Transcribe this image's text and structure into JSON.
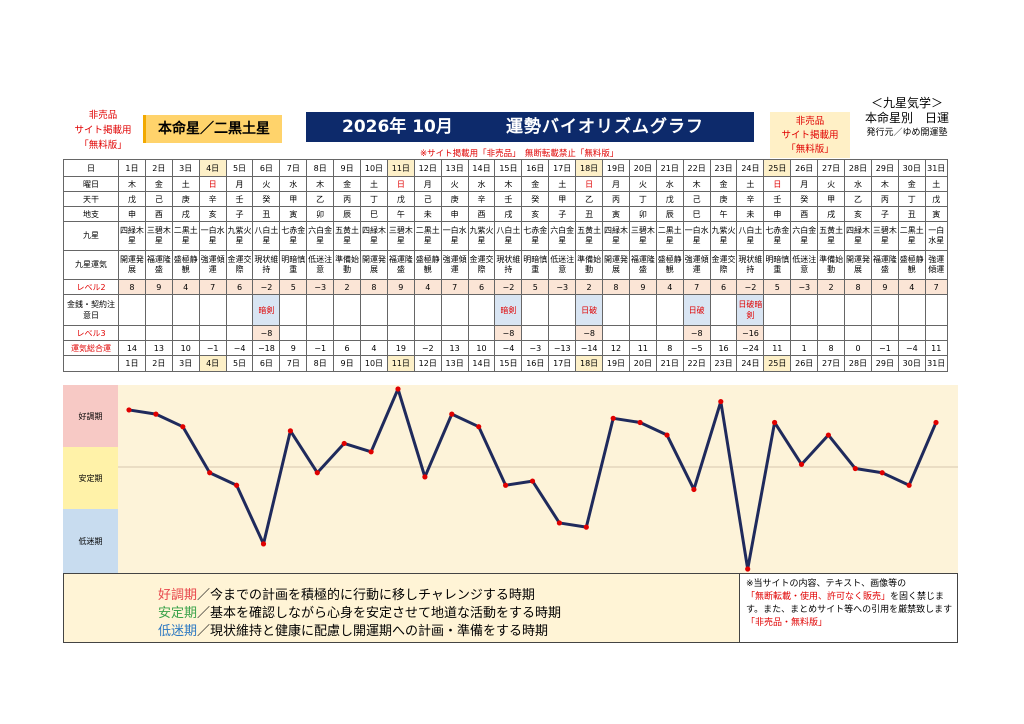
{
  "header": {
    "nonsale_left": [
      "非売品",
      "サイト掲載用",
      "「無料版」"
    ],
    "honmei": "本命星／二黒土星",
    "year_month": "2026年 10月",
    "title": "運勢バイオリズムグラフ",
    "nonsale_right": [
      "非売品",
      "サイト掲載用",
      "「無料版」"
    ],
    "kyusei": "＜九星気学＞",
    "kyusei_sub": "本命星別　日運",
    "publisher": "発行元／ゆめ開運塾",
    "notice": "※サイト掲載用「非売品」　無断転載禁止「無料版」"
  },
  "table": {
    "row_labels": {
      "date": "日",
      "weekday": "曜日",
      "kan": "天干",
      "shi": "地支",
      "kyusei": "九星",
      "unki": "九星運気",
      "level2": "レベル2",
      "kinsen": "金銭・契約注意日",
      "level3": "レベル3",
      "total": "運気総合運"
    },
    "days": [
      "1日",
      "2日",
      "3日",
      "4日",
      "5日",
      "6日",
      "7日",
      "8日",
      "9日",
      "10日",
      "11日",
      "12日",
      "13日",
      "14日",
      "15日",
      "16日",
      "17日",
      "18日",
      "19日",
      "20日",
      "21日",
      "22日",
      "23日",
      "24日",
      "25日",
      "26日",
      "27日",
      "28日",
      "29日",
      "30日",
      "31日"
    ],
    "weekdays": [
      "木",
      "金",
      "土",
      "日",
      "月",
      "火",
      "水",
      "木",
      "金",
      "土",
      "日",
      "月",
      "火",
      "水",
      "木",
      "金",
      "土",
      "日",
      "月",
      "火",
      "水",
      "木",
      "金",
      "土",
      "日",
      "月",
      "火",
      "水",
      "木",
      "金",
      "土"
    ],
    "kan": [
      "戊",
      "己",
      "庚",
      "辛",
      "壬",
      "癸",
      "甲",
      "乙",
      "丙",
      "丁",
      "戊",
      "己",
      "庚",
      "辛",
      "壬",
      "癸",
      "甲",
      "乙",
      "丙",
      "丁",
      "戊",
      "己",
      "庚",
      "辛",
      "壬",
      "癸",
      "甲",
      "乙",
      "丙",
      "丁",
      "戊"
    ],
    "shi": [
      "申",
      "酉",
      "戌",
      "亥",
      "子",
      "丑",
      "寅",
      "卯",
      "辰",
      "巳",
      "午",
      "未",
      "申",
      "酉",
      "戌",
      "亥",
      "子",
      "丑",
      "寅",
      "卯",
      "辰",
      "巳",
      "午",
      "未",
      "申",
      "酉",
      "戌",
      "亥",
      "子",
      "丑",
      "寅"
    ],
    "kyusei": [
      "四緑木星",
      "三碧木星",
      "二黒土星",
      "一白水星",
      "九紫火星",
      "八白土星",
      "七赤金星",
      "六白金星",
      "五黄土星",
      "四緑木星",
      "三碧木星",
      "二黒土星",
      "一白水星",
      "九紫火星",
      "八白土星",
      "七赤金星",
      "六白金星",
      "五黄土星",
      "四緑木星",
      "三碧木星",
      "二黒土星",
      "一白水星",
      "九紫火星",
      "八白土星",
      "七赤金星",
      "六白金星",
      "五黄土星",
      "四緑木星",
      "三碧木星",
      "二黒土星",
      "一白水星"
    ],
    "unki": [
      "開運発展",
      "福運隆盛",
      "盛極静観",
      "強運傾運",
      "金運交際",
      "現状維持",
      "明暗慎重",
      "低迷注意",
      "準備始動",
      "開運発展",
      "福運隆盛",
      "盛極静観",
      "強運傾運",
      "金運交際",
      "現状維持",
      "明暗慎重",
      "低迷注意",
      "準備始動",
      "開運発展",
      "福運隆盛",
      "盛極静観",
      "強運傾運",
      "金運交際",
      "現状維持",
      "明暗慎重",
      "低迷注意",
      "準備始動",
      "開運発展",
      "福運隆盛",
      "盛極静観",
      "強運傾運"
    ],
    "level2": [
      "8",
      "9",
      "4",
      "7",
      "6",
      "−2",
      "5",
      "−3",
      "2",
      "8",
      "9",
      "4",
      "7",
      "6",
      "−2",
      "5",
      "−3",
      "2",
      "8",
      "9",
      "4",
      "7",
      "6",
      "−2",
      "5",
      "−3",
      "2",
      "8",
      "9",
      "4",
      "7"
    ],
    "kinsen": [
      "",
      "",
      "",
      "",
      "",
      "暗剣",
      "",
      "",
      "",
      "",
      "",
      "",
      "",
      "",
      "暗剣",
      "",
      "",
      "日破",
      "",
      "",
      "",
      "日破",
      "",
      "日破暗剣",
      "",
      "",
      "",
      "",
      "",
      "",
      ""
    ],
    "level3": [
      "",
      "",
      "",
      "",
      "",
      "−8",
      "",
      "",
      "",
      "",
      "",
      "",
      "",
      "",
      "−8",
      "",
      "",
      "−8",
      "",
      "",
      "",
      "−8",
      "",
      "−16",
      "",
      "",
      "",
      "",
      "",
      "",
      ""
    ],
    "total": [
      "14",
      "13",
      "10",
      "−1",
      "−4",
      "−18",
      "9",
      "−1",
      "6",
      "4",
      "19",
      "−2",
      "13",
      "10",
      "−4",
      "−3",
      "−13",
      "−14",
      "12",
      "11",
      "8",
      "−5",
      "16",
      "−24",
      "11",
      "1",
      "8",
      "0",
      "−1",
      "−4",
      "11"
    ]
  },
  "chart_data": {
    "type": "line",
    "x": [
      "1日",
      "2日",
      "3日",
      "4日",
      "5日",
      "6日",
      "7日",
      "8日",
      "9日",
      "10日",
      "11日",
      "12日",
      "13日",
      "14日",
      "15日",
      "16日",
      "17日",
      "18日",
      "19日",
      "20日",
      "21日",
      "22日",
      "23日",
      "24日",
      "25日",
      "26日",
      "27日",
      "28日",
      "29日",
      "30日",
      "31日"
    ],
    "series": [
      {
        "values": [
          14,
          13,
          10,
          -1,
          -4,
          -18,
          9,
          -1,
          6,
          4,
          19,
          -2,
          13,
          10,
          -4,
          -3,
          -13,
          -14,
          12,
          11,
          8,
          -5,
          16,
          -24,
          11,
          1,
          8,
          0,
          -1,
          -4,
          11
        ]
      }
    ],
    "ylim": [
      -24,
      19
    ],
    "zones": [
      "好調期",
      "安定期",
      "低迷期"
    ],
    "line_color": "#1f2a5c",
    "marker_color": "#e00000"
  },
  "legend": {
    "lines": [
      {
        "term": "好調期",
        "text": "／今までの計画を積極的に行動に移しチャレンジする時期"
      },
      {
        "term": "安定期",
        "text": "／基本を確認しながら心身を安定させて地道な活動をする時期"
      },
      {
        "term": "低迷期",
        "text": "／現状維持と健康に配慮し開運期への計画・準備をする時期"
      }
    ]
  },
  "disclaimer": {
    "p1": "※当サイトの内容、テキスト、画像等の",
    "p2_red": "「無断転載・使用、許可なく販売」",
    "p2": "を固く禁じます。また、まとめサイト等への引用を厳禁致します",
    "p3_red": "「非売品・無料版」"
  }
}
